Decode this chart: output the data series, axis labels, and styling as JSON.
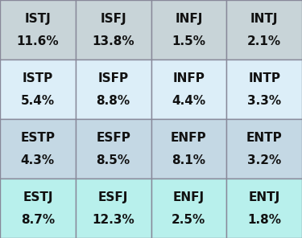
{
  "types": [
    [
      "ISTJ",
      "ISFJ",
      "INFJ",
      "INTJ"
    ],
    [
      "ISTP",
      "ISFP",
      "INFP",
      "INTP"
    ],
    [
      "ESTP",
      "ESFP",
      "ENFP",
      "ENTP"
    ],
    [
      "ESTJ",
      "ESFJ",
      "ENFJ",
      "ENTJ"
    ]
  ],
  "percentages": [
    [
      "11.6%",
      "13.8%",
      "1.5%",
      "2.1%"
    ],
    [
      "5.4%",
      "8.8%",
      "4.4%",
      "3.3%"
    ],
    [
      "4.3%",
      "8.5%",
      "8.1%",
      "3.2%"
    ],
    [
      "8.7%",
      "12.3%",
      "2.5%",
      "1.8%"
    ]
  ],
  "row_colors": [
    "#c8d4d8",
    "#dceef8",
    "#c4d8e4",
    "#b8f0ec"
  ],
  "border_color": "#888899",
  "type_fontsize": 11,
  "pct_fontsize": 11,
  "text_color": "#111111",
  "fig_bg": "#ffffff",
  "fig_width": 3.75,
  "fig_height": 2.96,
  "dpi": 100
}
